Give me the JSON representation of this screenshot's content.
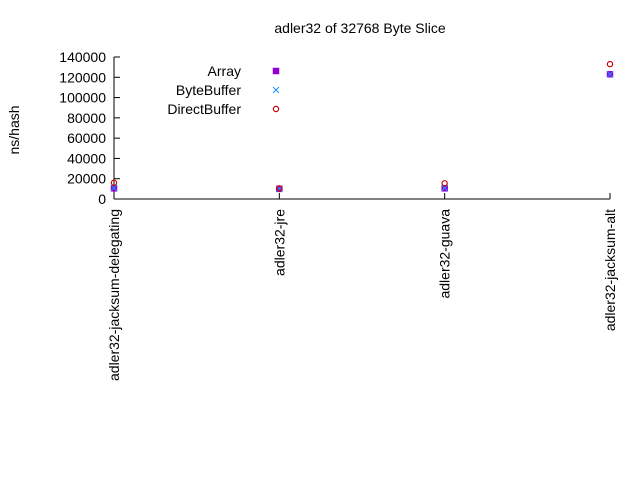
{
  "chart_data": {
    "type": "scatter",
    "title": "adler32 of 32768 Byte Slice",
    "xlabel": "",
    "ylabel": "ns/hash",
    "categories": [
      "adler32-jacksum-delegating",
      "adler32-jre",
      "adler32-guava",
      "adler32-jacksum-alt"
    ],
    "ylim": [
      0,
      140000
    ],
    "yticks": [
      0,
      20000,
      40000,
      60000,
      80000,
      100000,
      120000,
      140000
    ],
    "ytick_labels": [
      "0",
      "20000",
      "40000",
      "60000",
      "80000",
      "100000",
      "120000",
      "140000"
    ],
    "grid": false,
    "legend_position": "top-left",
    "series": [
      {
        "name": "Array",
        "color": "#9400d3",
        "marker": "filled-square",
        "values": [
          10500,
          10000,
          10500,
          123000
        ]
      },
      {
        "name": "ByteBuffer",
        "color": "#1e90ff",
        "marker": "cross",
        "values": [
          11000,
          10000,
          11000,
          123000
        ]
      },
      {
        "name": "DirectBuffer",
        "color": "#cc0000",
        "marker": "open-circle",
        "values": [
          16000,
          10500,
          15500,
          133000
        ]
      }
    ]
  }
}
